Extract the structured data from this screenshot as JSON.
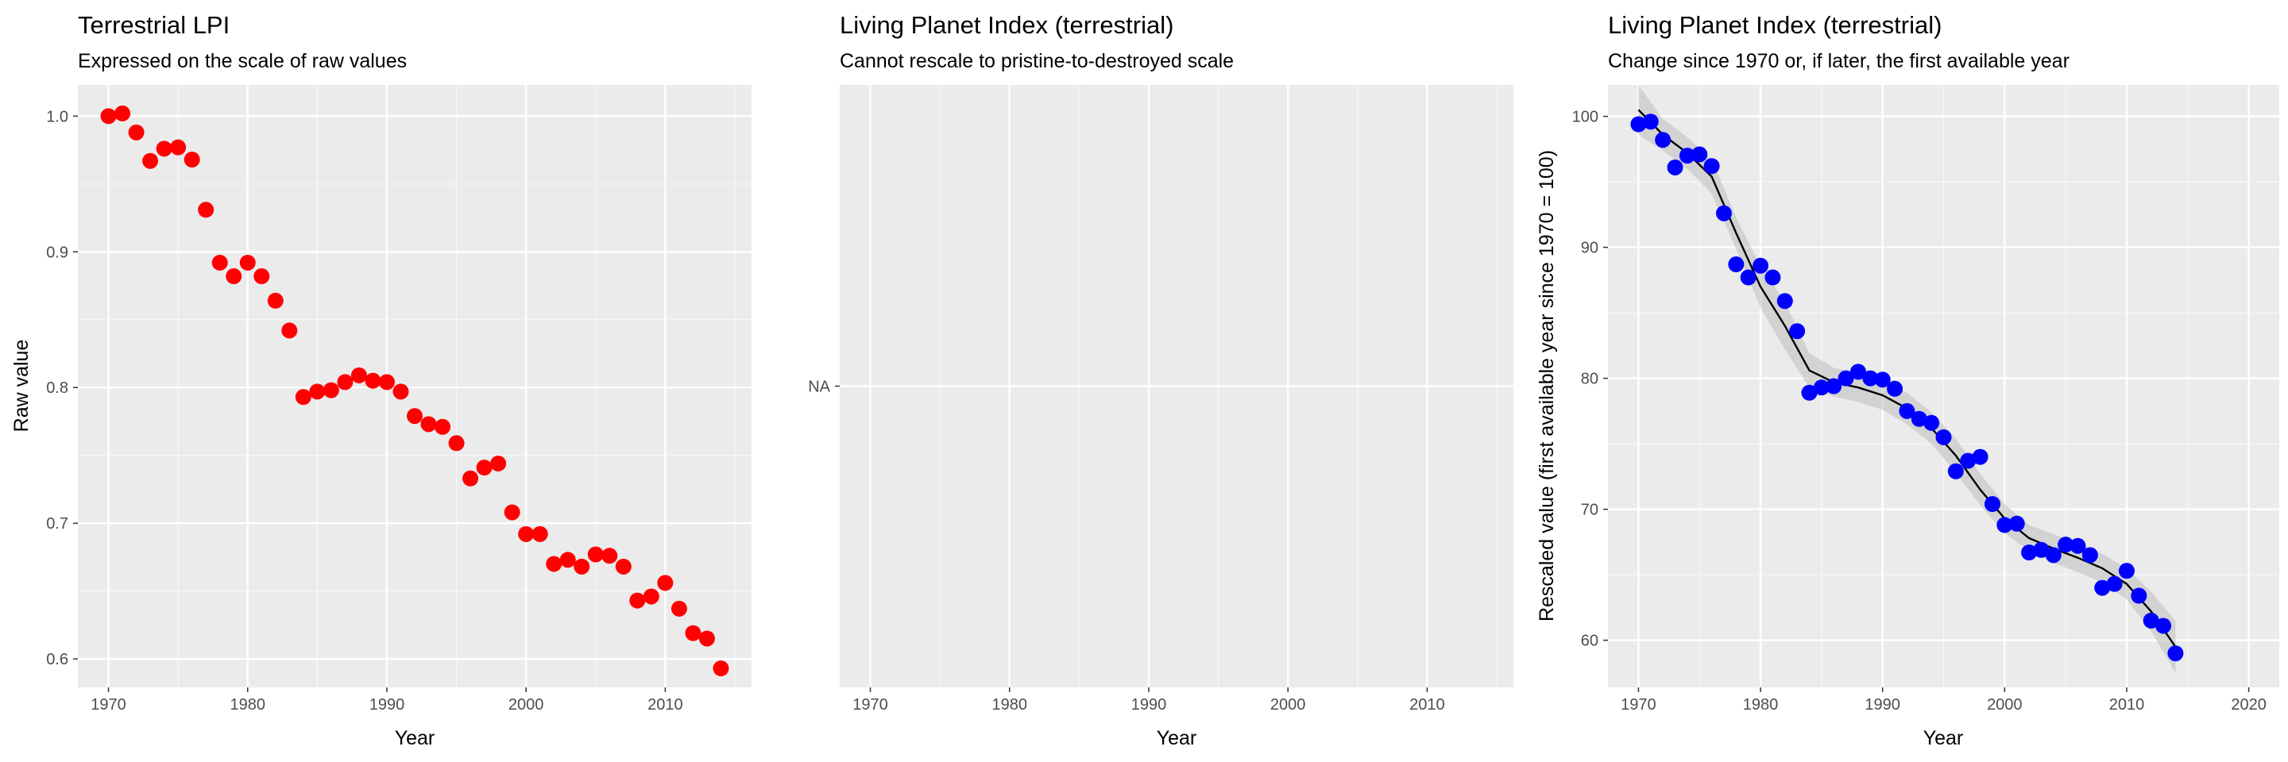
{
  "panels": [
    {
      "title": "Terrestrial LPI",
      "subtitle": "Expressed on the scale of raw values",
      "xlabel": "Year",
      "ylabel": "Raw value"
    },
    {
      "title": "Living Planet Index (terrestrial)",
      "subtitle": "Cannot rescale to pristine-to-destroyed scale",
      "xlabel": "Year",
      "ylabel": ""
    },
    {
      "title": "Living Planet Index (terrestrial)",
      "subtitle": "Change since 1970 or, if later, the first available year",
      "xlabel": "Year",
      "ylabel": "Rescaled value (first available year since 1970 = 100)"
    }
  ],
  "chart_data": [
    {
      "type": "scatter",
      "title": "Terrestrial LPI",
      "subtitle": "Expressed on the scale of raw values",
      "xlabel": "Year",
      "ylabel": "Raw value",
      "xlim": [
        1967.8,
        2016.2
      ],
      "ylim": [
        0.579,
        1.023
      ],
      "x_ticks": [
        1970,
        1980,
        1990,
        2000,
        2010
      ],
      "y_ticks": [
        0.6,
        0.7,
        0.8,
        0.9,
        1.0
      ],
      "y_tick_labels": [
        "0.6",
        "0.7",
        "0.8",
        "0.9",
        "1.0"
      ],
      "grid": true,
      "point_color": "#ff0000",
      "x": [
        1970,
        1971,
        1972,
        1973,
        1974,
        1975,
        1976,
        1977,
        1978,
        1979,
        1980,
        1981,
        1982,
        1983,
        1984,
        1985,
        1986,
        1987,
        1988,
        1989,
        1990,
        1991,
        1992,
        1993,
        1994,
        1995,
        1996,
        1997,
        1998,
        1999,
        2000,
        2001,
        2002,
        2003,
        2004,
        2005,
        2006,
        2007,
        2008,
        2009,
        2010,
        2011,
        2012,
        2013,
        2014
      ],
      "y": [
        1.0,
        1.002,
        0.988,
        0.967,
        0.976,
        0.977,
        0.968,
        0.931,
        0.892,
        0.882,
        0.892,
        0.882,
        0.864,
        0.842,
        0.793,
        0.797,
        0.798,
        0.804,
        0.809,
        0.805,
        0.804,
        0.797,
        0.779,
        0.773,
        0.771,
        0.759,
        0.733,
        0.741,
        0.744,
        0.708,
        0.692,
        0.692,
        0.67,
        0.673,
        0.668,
        0.677,
        0.676,
        0.668,
        0.643,
        0.646,
        0.656,
        0.637,
        0.619,
        0.615,
        0.593
      ]
    },
    {
      "type": "scatter",
      "title": "Living Planet Index (terrestrial)",
      "subtitle": "Cannot rescale to pristine-to-destroyed scale",
      "xlabel": "Year",
      "ylabel": "",
      "xlim": [
        1967.8,
        2016.2
      ],
      "x_ticks": [
        1970,
        1980,
        1990,
        2000,
        2010
      ],
      "y_tick_labels": [
        "NA"
      ],
      "grid": true,
      "x": [],
      "y": []
    },
    {
      "type": "scatter",
      "title": "Living Planet Index (terrestrial)",
      "subtitle": "Change since 1970 or, if later, the first available year",
      "xlabel": "Year",
      "ylabel": "Rescaled value (first available year since 1970 = 100)",
      "xlim": [
        1967.5,
        2022.5
      ],
      "ylim": [
        56.4,
        102.4
      ],
      "x_ticks": [
        1970,
        1980,
        1990,
        2000,
        2010,
        2020
      ],
      "y_ticks": [
        60,
        70,
        80,
        90,
        100
      ],
      "grid": true,
      "point_color": "#0000ff",
      "x": [
        1970,
        1971,
        1972,
        1973,
        1974,
        1975,
        1976,
        1977,
        1978,
        1979,
        1980,
        1981,
        1982,
        1983,
        1984,
        1985,
        1986,
        1987,
        1988,
        1989,
        1990,
        1991,
        1992,
        1993,
        1994,
        1995,
        1996,
        1997,
        1998,
        1999,
        2000,
        2001,
        2002,
        2003,
        2004,
        2005,
        2006,
        2007,
        2008,
        2009,
        2010,
        2011,
        2012,
        2013,
        2014
      ],
      "y": [
        99.4,
        99.6,
        98.2,
        96.1,
        97.0,
        97.1,
        96.2,
        92.6,
        88.7,
        87.7,
        88.6,
        87.7,
        85.9,
        83.6,
        78.9,
        79.3,
        79.4,
        80.0,
        80.5,
        80.0,
        79.9,
        79.2,
        77.5,
        76.9,
        76.6,
        75.5,
        72.9,
        73.7,
        74.0,
        70.4,
        68.8,
        68.9,
        66.7,
        66.9,
        66.5,
        67.3,
        67.2,
        66.5,
        64.0,
        64.3,
        65.3,
        63.4,
        61.5,
        61.1,
        59.0
      ],
      "smooth": {
        "color": "#000000",
        "band_color": "#bdbdbd",
        "x": [
          1970,
          1972,
          1974,
          1976,
          1978,
          1980,
          1982,
          1984,
          1986,
          1988,
          1990,
          1992,
          1994,
          1996,
          1998,
          2000,
          2002,
          2004,
          2006,
          2008,
          2010,
          2012,
          2014
        ],
        "y": [
          100.5,
          98.6,
          97.2,
          95.4,
          91.1,
          87.0,
          84.0,
          80.6,
          79.7,
          79.3,
          78.7,
          77.7,
          76.2,
          74.1,
          71.5,
          69.3,
          67.8,
          67.0,
          66.3,
          65.5,
          64.3,
          62.2,
          59.5
        ],
        "lower": [
          98.6,
          97.4,
          96.0,
          94.1,
          89.9,
          85.4,
          82.2,
          79.3,
          78.6,
          78.2,
          77.6,
          76.5,
          75.0,
          72.8,
          70.3,
          68.2,
          66.8,
          65.9,
          65.2,
          64.4,
          63.1,
          60.7,
          57.5
        ],
        "upper": [
          102.4,
          99.8,
          98.4,
          96.7,
          92.3,
          88.6,
          85.8,
          81.9,
          80.8,
          80.4,
          79.8,
          78.9,
          77.4,
          75.4,
          72.7,
          70.4,
          68.8,
          68.1,
          67.4,
          66.6,
          65.5,
          63.7,
          61.5
        ]
      }
    }
  ]
}
